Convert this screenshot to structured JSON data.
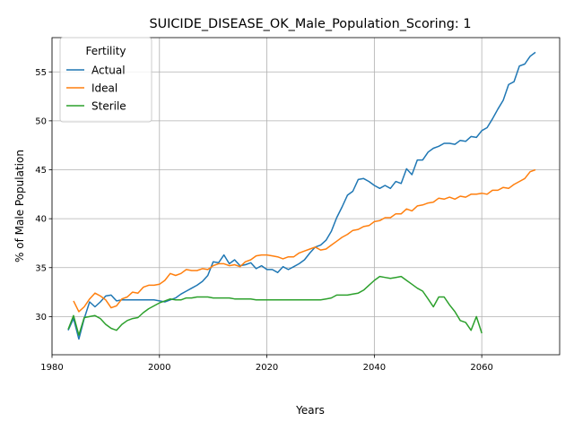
{
  "chart_data": {
    "type": "line",
    "title": "SUICIDE_DISEASE_OK_Male_Population_Scoring: 1",
    "xlabel": "Years",
    "ylabel": "% of Male Population",
    "xlim": [
      1980,
      2074.5
    ],
    "ylim": [
      26.1,
      58.5
    ],
    "xticks": [
      1980,
      2000,
      2020,
      2040,
      2060
    ],
    "yticks": [
      30,
      35,
      40,
      45,
      50,
      55
    ],
    "grid": true,
    "legend": {
      "title": "Fertility",
      "placement": "top-left"
    },
    "series": [
      {
        "name": "Actual",
        "color": "#1f77b4",
        "x": [
          1983,
          1984,
          1985,
          1986,
          1987,
          1988,
          1989,
          1990,
          1991,
          1992,
          1993,
          1994,
          1995,
          1996,
          1997,
          1998,
          1999,
          2000,
          2001,
          2002,
          2003,
          2004,
          2005,
          2006,
          2007,
          2008,
          2009,
          2010,
          2011,
          2012,
          2013,
          2014,
          2015,
          2016,
          2017,
          2018,
          2019,
          2020,
          2021,
          2022,
          2023,
          2024,
          2025,
          2026,
          2027,
          2028,
          2029,
          2030,
          2031,
          2032,
          2033,
          2034,
          2035,
          2036,
          2037,
          2038,
          2039,
          2040,
          2041,
          2042,
          2043,
          2044,
          2045,
          2046,
          2047,
          2048,
          2049,
          2050,
          2051,
          2052,
          2053,
          2054,
          2055,
          2056,
          2057,
          2058,
          2059,
          2060,
          2061,
          2062,
          2063,
          2064,
          2065,
          2066,
          2067,
          2068,
          2069,
          2070
        ],
        "values": [
          28.6,
          29.8,
          27.7,
          29.8,
          31.5,
          31.0,
          31.5,
          32.1,
          32.2,
          31.6,
          31.7,
          31.7,
          31.7,
          31.7,
          31.7,
          31.7,
          31.7,
          31.6,
          31.5,
          31.7,
          31.9,
          32.3,
          32.6,
          32.9,
          33.2,
          33.6,
          34.2,
          35.6,
          35.5,
          36.3,
          35.4,
          35.8,
          35.2,
          35.3,
          35.5,
          34.9,
          35.2,
          34.8,
          34.8,
          34.5,
          35.1,
          34.8,
          35.1,
          35.4,
          35.8,
          36.5,
          37.1,
          37.3,
          37.8,
          38.7,
          40.1,
          41.2,
          42.4,
          42.8,
          44.0,
          44.1,
          43.8,
          43.4,
          43.1,
          43.4,
          43.1,
          43.8,
          43.6,
          45.1,
          44.5,
          46.0,
          46.0,
          46.8,
          47.2,
          47.4,
          47.7,
          47.7,
          47.6,
          48.0,
          47.9,
          48.4,
          48.3,
          49.0,
          49.3,
          50.2,
          51.2,
          52.1,
          53.7,
          54.0,
          55.6,
          55.8,
          56.6,
          57.0
        ]
      },
      {
        "name": "Ideal",
        "color": "#ff7f0e",
        "x": [
          1984,
          1985,
          1986,
          1987,
          1988,
          1989,
          1990,
          1991,
          1992,
          1993,
          1994,
          1995,
          1996,
          1997,
          1998,
          1999,
          2000,
          2001,
          2002,
          2003,
          2004,
          2005,
          2006,
          2007,
          2008,
          2009,
          2010,
          2011,
          2012,
          2013,
          2014,
          2015,
          2016,
          2017,
          2018,
          2019,
          2020,
          2021,
          2022,
          2023,
          2024,
          2025,
          2026,
          2027,
          2028,
          2029,
          2030,
          2031,
          2032,
          2033,
          2034,
          2035,
          2036,
          2037,
          2038,
          2039,
          2040,
          2041,
          2042,
          2043,
          2044,
          2045,
          2046,
          2047,
          2048,
          2049,
          2050,
          2051,
          2052,
          2053,
          2054,
          2055,
          2056,
          2057,
          2058,
          2059,
          2060,
          2061,
          2062,
          2063,
          2064,
          2065,
          2066,
          2067,
          2068,
          2069,
          2070
        ],
        "values": [
          31.6,
          30.5,
          31.0,
          31.8,
          32.4,
          32.1,
          31.7,
          30.9,
          31.1,
          31.8,
          32.0,
          32.5,
          32.4,
          33.0,
          33.2,
          33.2,
          33.3,
          33.7,
          34.4,
          34.2,
          34.4,
          34.8,
          34.7,
          34.7,
          34.9,
          34.8,
          35.2,
          35.4,
          35.4,
          35.2,
          35.3,
          35.1,
          35.6,
          35.8,
          36.2,
          36.3,
          36.3,
          36.2,
          36.1,
          35.9,
          36.1,
          36.1,
          36.5,
          36.7,
          36.9,
          37.1,
          36.8,
          36.9,
          37.3,
          37.7,
          38.1,
          38.4,
          38.8,
          38.9,
          39.2,
          39.3,
          39.7,
          39.8,
          40.1,
          40.1,
          40.5,
          40.5,
          41.0,
          40.8,
          41.3,
          41.4,
          41.6,
          41.7,
          42.1,
          42.0,
          42.2,
          42.0,
          42.3,
          42.2,
          42.5,
          42.5,
          42.6,
          42.5,
          42.9,
          42.9,
          43.2,
          43.1,
          43.5,
          43.8,
          44.1,
          44.8,
          45.0
        ]
      },
      {
        "name": "Sterile",
        "color": "#2ca02c",
        "x": [
          1983,
          1984,
          1985,
          1986,
          1987,
          1988,
          1989,
          1990,
          1991,
          1992,
          1993,
          1994,
          1995,
          1996,
          1997,
          1998,
          1999,
          2000,
          2001,
          2002,
          2003,
          2004,
          2005,
          2006,
          2007,
          2008,
          2009,
          2010,
          2011,
          2012,
          2013,
          2014,
          2015,
          2016,
          2017,
          2018,
          2019,
          2020,
          2021,
          2022,
          2023,
          2024,
          2025,
          2026,
          2027,
          2028,
          2029,
          2030,
          2031,
          2032,
          2033,
          2034,
          2035,
          2036,
          2037,
          2038,
          2039,
          2040,
          2041,
          2042,
          2043,
          2044,
          2045,
          2046,
          2047,
          2048,
          2049,
          2050,
          2051,
          2052,
          2053,
          2054,
          2055,
          2056,
          2057,
          2058,
          2059,
          2060
        ],
        "values": [
          28.7,
          30.1,
          28.1,
          29.9,
          30.0,
          30.1,
          29.8,
          29.2,
          28.8,
          28.6,
          29.2,
          29.6,
          29.8,
          29.9,
          30.4,
          30.8,
          31.1,
          31.4,
          31.6,
          31.8,
          31.7,
          31.7,
          31.9,
          31.9,
          32.0,
          32.0,
          32.0,
          31.9,
          31.9,
          31.9,
          31.9,
          31.8,
          31.8,
          31.8,
          31.8,
          31.7,
          31.7,
          31.7,
          31.7,
          31.7,
          31.7,
          31.7,
          31.7,
          31.7,
          31.7,
          31.7,
          31.7,
          31.7,
          31.8,
          31.9,
          32.2,
          32.2,
          32.2,
          32.3,
          32.4,
          32.7,
          33.2,
          33.7,
          34.1,
          34.0,
          33.9,
          34.0,
          34.1,
          33.7,
          33.3,
          32.9,
          32.6,
          31.8,
          31.0,
          32.0,
          32.0,
          31.2,
          30.5,
          29.6,
          29.4,
          28.6,
          30.0,
          28.3
        ]
      }
    ]
  }
}
